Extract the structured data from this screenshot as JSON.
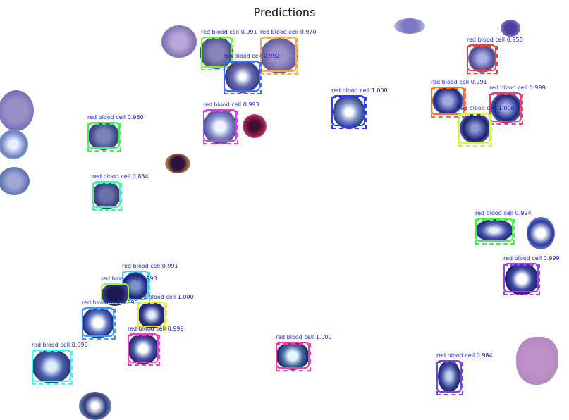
{
  "figure": {
    "title": "Predictions"
  },
  "detections": [
    {
      "label": "red blood cell",
      "score": "0.991",
      "color": "#6cf53c"
    },
    {
      "label": "red blood cell",
      "score": "0.970",
      "color": "#ffa53c"
    },
    {
      "label": "red blood cell",
      "score": "0.992",
      "color": "#3c6cf5"
    },
    {
      "label": "red blood cell",
      "score": "0.953",
      "color": "#f53c3c"
    },
    {
      "label": "red blood cell",
      "score": "1.000",
      "color": "#2f3cf5"
    },
    {
      "label": "red blood cell",
      "score": "0.991",
      "color": "#ff6a2a"
    },
    {
      "label": "red blood cell",
      "score": "0.999",
      "color": "#f53c6c"
    },
    {
      "label": "red blood cell",
      "score": "1.000",
      "color": "#d7f53c"
    },
    {
      "label": "red blood cell",
      "score": "0.993",
      "color": "#d63cf5"
    },
    {
      "label": "red blood cell",
      "score": "0.960",
      "color": "#3cf55a"
    },
    {
      "label": "red blood cell",
      "score": "0.834",
      "color": "#3cf5a8"
    },
    {
      "label": "red blood cell",
      "score": "0.994",
      "color": "#3cf53c"
    },
    {
      "label": "red blood cell",
      "score": "0.999",
      "color": "#a53cf5"
    },
    {
      "label": "red blood cell",
      "score": "0.991",
      "color": "#3cd7f5"
    },
    {
      "label": "red blood cell",
      "score": "0.993",
      "color": "#9af53c"
    },
    {
      "label": "red blood cell",
      "score": "1.000",
      "color": "#f5e63c"
    },
    {
      "label": "red blood cell",
      "score": "0.998",
      "color": "#3c9af5"
    },
    {
      "label": "red blood cell",
      "score": "0.999",
      "color": "#f53cc8"
    },
    {
      "label": "red blood cell",
      "score": "0.999",
      "color": "#3cf5f5"
    },
    {
      "label": "red blood cell",
      "score": "1.000",
      "color": "#f53ca5"
    },
    {
      "label": "red blood cell",
      "score": "0.984",
      "color": "#7a3cf5"
    }
  ]
}
